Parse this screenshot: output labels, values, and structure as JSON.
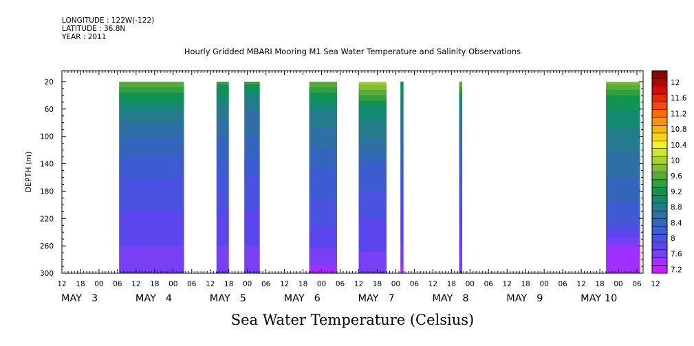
{
  "header": {
    "longitude": "LONGITUDE : 122W(-122)",
    "latitude": "LATITUDE : 36.8N",
    "year": "YEAR : 2011"
  },
  "chart_data": {
    "type": "heatmap",
    "title": "Hourly Gridded MBARI Mooring M1 Sea Water Temperature and Salinity Observations",
    "subtitle": "Sea Water Temperature (Celsius)",
    "ylabel": "DEPTH (m)",
    "ylim": [
      300,
      0
    ],
    "yticks": [
      20,
      60,
      100,
      140,
      180,
      220,
      260,
      300
    ],
    "x_start_hour": 12,
    "x_end_hour": 200,
    "x_hour_labels": [
      "12",
      "18",
      "00",
      "06",
      "12",
      "18",
      "00",
      "06",
      "12",
      "18",
      "00",
      "06",
      "12",
      "18",
      "00",
      "06",
      "12",
      "18",
      "00",
      "06",
      "12",
      "18",
      "00",
      "06",
      "12",
      "18",
      "00",
      "06",
      "12",
      "18",
      "00",
      "06",
      "12"
    ],
    "x_day_labels": [
      {
        "label": "MAY   3",
        "hour": 12
      },
      {
        "label": "MAY   4",
        "hour": 36
      },
      {
        "label": "MAY   5",
        "hour": 60
      },
      {
        "label": "MAY   6",
        "hour": 84
      },
      {
        "label": "MAY   7",
        "hour": 108
      },
      {
        "label": "MAY   8",
        "hour": 132
      },
      {
        "label": "MAY   9",
        "hour": 156
      },
      {
        "label": "MAY 10",
        "hour": 180
      }
    ],
    "data_segments": [
      {
        "start_hour": 30.5,
        "end_hour": 51.5,
        "profile": [
          [
            20,
            9.8
          ],
          [
            40,
            9.3
          ],
          [
            60,
            9.0
          ],
          [
            80,
            8.8
          ],
          [
            100,
            8.6
          ],
          [
            140,
            8.3
          ],
          [
            180,
            8.1
          ],
          [
            220,
            7.95
          ],
          [
            260,
            7.8
          ],
          [
            300,
            7.6
          ]
        ]
      },
      {
        "start_hour": 62,
        "end_hour": 66,
        "profile": [
          [
            20,
            9.5
          ],
          [
            40,
            9.1
          ],
          [
            60,
            8.9
          ],
          [
            100,
            8.6
          ],
          [
            140,
            8.3
          ],
          [
            180,
            8.1
          ],
          [
            220,
            7.95
          ],
          [
            260,
            7.8
          ],
          [
            300,
            7.6
          ]
        ]
      },
      {
        "start_hour": 71,
        "end_hour": 76,
        "profile": [
          [
            20,
            9.5
          ],
          [
            40,
            9.0
          ],
          [
            60,
            8.8
          ],
          [
            100,
            8.6
          ],
          [
            140,
            8.3
          ],
          [
            180,
            8.1
          ],
          [
            220,
            7.95
          ],
          [
            260,
            7.8
          ],
          [
            300,
            7.6
          ]
        ]
      },
      {
        "start_hour": 92,
        "end_hour": 101,
        "profile": [
          [
            20,
            9.8
          ],
          [
            40,
            9.3
          ],
          [
            60,
            9.0
          ],
          [
            100,
            8.7
          ],
          [
            140,
            8.45
          ],
          [
            180,
            8.25
          ],
          [
            220,
            8.05
          ],
          [
            260,
            7.85
          ],
          [
            300,
            7.5
          ]
        ]
      },
      {
        "start_hour": 108,
        "end_hour": 117,
        "profile": [
          [
            20,
            10.1
          ],
          [
            40,
            9.6
          ],
          [
            60,
            9.1
          ],
          [
            100,
            8.85
          ],
          [
            140,
            8.4
          ],
          [
            180,
            8.2
          ],
          [
            220,
            8.0
          ],
          [
            260,
            7.85
          ],
          [
            300,
            7.6
          ]
        ]
      },
      {
        "start_hour": 121.5,
        "end_hour": 122.5,
        "profile": [
          [
            20,
            9.4
          ],
          [
            60,
            8.9
          ],
          [
            100,
            8.6
          ],
          [
            140,
            8.4
          ],
          [
            180,
            8.1
          ],
          [
            220,
            7.95
          ],
          [
            260,
            7.8
          ],
          [
            300,
            7.5
          ]
        ]
      },
      {
        "start_hour": 140.5,
        "end_hour": 141.5,
        "profile": [
          [
            20,
            9.8
          ],
          [
            40,
            9.3
          ],
          [
            60,
            8.9
          ],
          [
            100,
            8.6
          ],
          [
            140,
            8.3
          ],
          [
            180,
            8.1
          ],
          [
            220,
            7.95
          ],
          [
            260,
            7.8
          ],
          [
            300,
            7.6
          ]
        ]
      },
      {
        "start_hour": 188,
        "end_hour": 199,
        "profile": [
          [
            20,
            9.9
          ],
          [
            40,
            9.4
          ],
          [
            60,
            9.2
          ],
          [
            100,
            8.9
          ],
          [
            140,
            8.7
          ],
          [
            180,
            8.5
          ],
          [
            220,
            8.25
          ],
          [
            260,
            7.6
          ],
          [
            300,
            7.4
          ]
        ]
      }
    ],
    "colorbar": {
      "levels": [
        7.2,
        7.4,
        7.6,
        7.8,
        8.0,
        8.2,
        8.4,
        8.6,
        8.8,
        9.0,
        9.2,
        9.4,
        9.6,
        9.8,
        10.0,
        10.2,
        10.4,
        10.6,
        10.8,
        11.0,
        11.2,
        11.4,
        11.6,
        11.8,
        12.0,
        12.2
      ],
      "colors": [
        "#c81eff",
        "#a030ff",
        "#7840f5",
        "#5a46ec",
        "#4a52e0",
        "#3c5cd2",
        "#3566be",
        "#2e70a6",
        "#237c8c",
        "#118a70",
        "#0e9450",
        "#2ea040",
        "#56ac3a",
        "#80be34",
        "#a8d230",
        "#cce628",
        "#eef220",
        "#f6d218",
        "#f8b410",
        "#f8920c",
        "#f86c08",
        "#f44806",
        "#e82804",
        "#d01004",
        "#b00404",
        "#900000"
      ],
      "labels": [
        "7.2",
        "7.6",
        "8",
        "8.4",
        "8.8",
        "9.2",
        "9.6",
        "10",
        "10.4",
        "10.8",
        "11.2",
        "11.6",
        "12"
      ]
    }
  }
}
